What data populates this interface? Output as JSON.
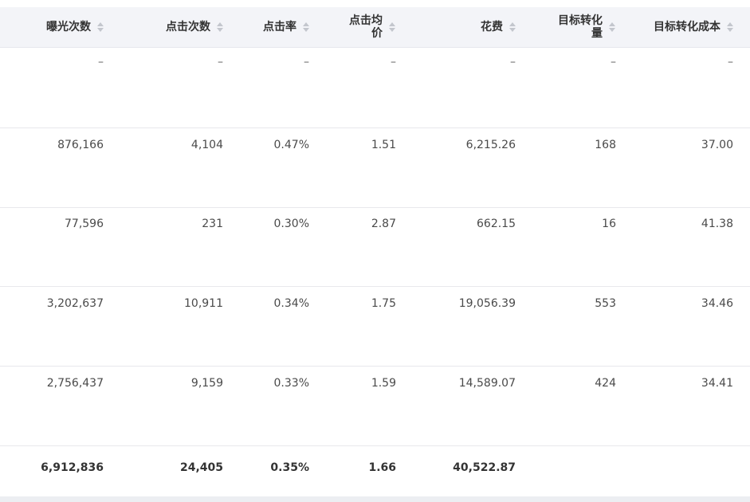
{
  "columns": [
    {
      "label": "曝光次数"
    },
    {
      "label": "点击次数"
    },
    {
      "label": "点击率"
    },
    {
      "label": "点击均价"
    },
    {
      "label": "花费"
    },
    {
      "label": "目标转化量"
    },
    {
      "label": "目标转化成本"
    }
  ],
  "rows": [
    [
      "–",
      "–",
      "–",
      "–",
      "–",
      "–",
      "–"
    ],
    [
      "876,166",
      "4,104",
      "0.47%",
      "1.51",
      "6,215.26",
      "168",
      "37.00"
    ],
    [
      "77,596",
      "231",
      "0.30%",
      "2.87",
      "662.15",
      "16",
      "41.38"
    ],
    [
      "3,202,637",
      "10,911",
      "0.34%",
      "1.75",
      "19,056.39",
      "553",
      "34.46"
    ],
    [
      "2,756,437",
      "9,159",
      "0.33%",
      "1.59",
      "14,589.07",
      "424",
      "34.41"
    ]
  ],
  "totals": [
    "6,912,836",
    "24,405",
    "0.35%",
    "1.66",
    "40,522.87",
    "",
    ""
  ]
}
